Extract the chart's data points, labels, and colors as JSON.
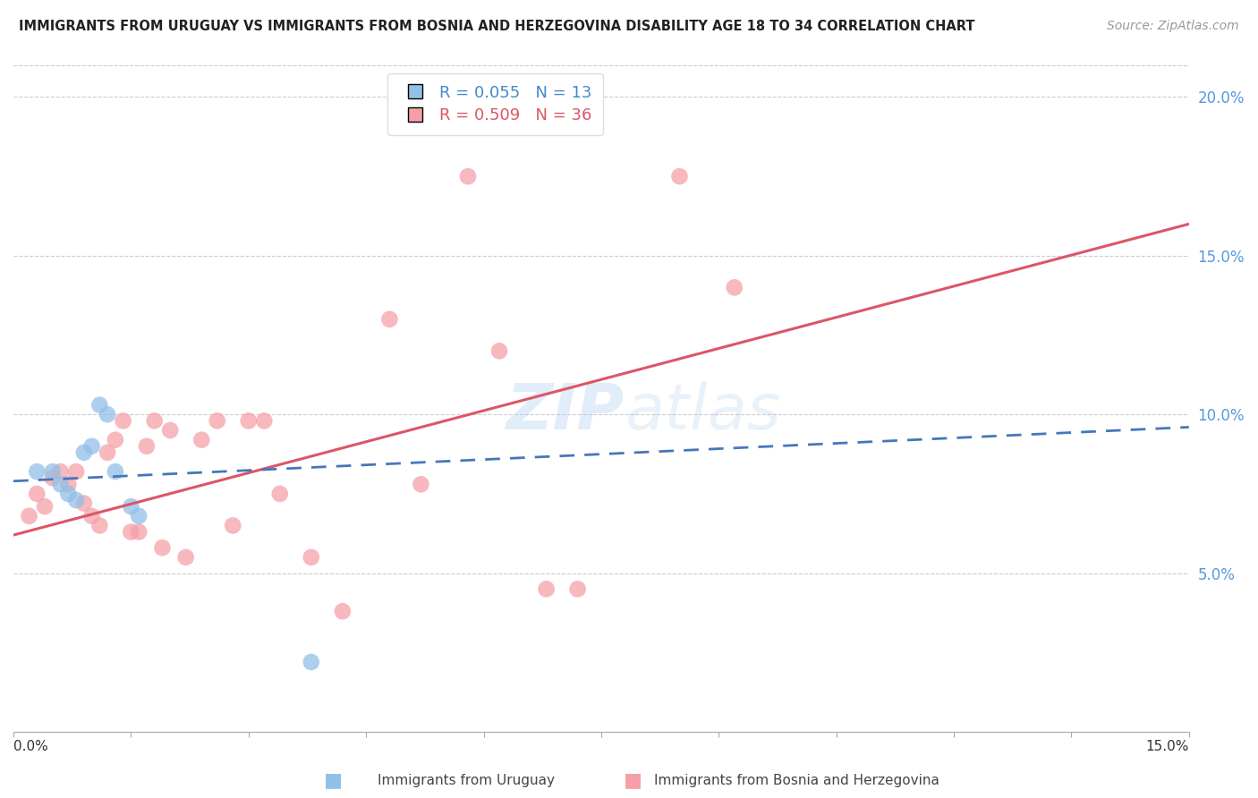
{
  "title": "IMMIGRANTS FROM URUGUAY VS IMMIGRANTS FROM BOSNIA AND HERZEGOVINA DISABILITY AGE 18 TO 34 CORRELATION CHART",
  "source": "Source: ZipAtlas.com",
  "ylabel": "Disability Age 18 to 34",
  "xlim": [
    0.0,
    0.15
  ],
  "ylim": [
    0.0,
    0.21
  ],
  "yticks_right": [
    0.05,
    0.1,
    0.15,
    0.2
  ],
  "watermark": "ZIPatlas",
  "legend_label1": "Immigrants from Uruguay",
  "legend_label2": "Immigrants from Bosnia and Herzegovina",
  "uruguay_color": "#92C0E8",
  "bosnia_color": "#F5A0A8",
  "uruguay_line_color": "#4477BB",
  "bosnia_line_color": "#DD5566",
  "uruguay_x": [
    0.003,
    0.005,
    0.006,
    0.007,
    0.008,
    0.009,
    0.01,
    0.011,
    0.012,
    0.013,
    0.015,
    0.016,
    0.038
  ],
  "uruguay_y": [
    0.082,
    0.082,
    0.078,
    0.075,
    0.073,
    0.088,
    0.09,
    0.103,
    0.1,
    0.082,
    0.071,
    0.068,
    0.022
  ],
  "bosnia_x": [
    0.002,
    0.003,
    0.004,
    0.005,
    0.006,
    0.007,
    0.008,
    0.009,
    0.01,
    0.011,
    0.012,
    0.013,
    0.014,
    0.015,
    0.016,
    0.017,
    0.018,
    0.019,
    0.02,
    0.022,
    0.024,
    0.026,
    0.028,
    0.03,
    0.032,
    0.034,
    0.038,
    0.042,
    0.048,
    0.052,
    0.058,
    0.062,
    0.068,
    0.072,
    0.085,
    0.092
  ],
  "bosnia_y": [
    0.068,
    0.075,
    0.071,
    0.08,
    0.082,
    0.078,
    0.082,
    0.072,
    0.068,
    0.065,
    0.088,
    0.092,
    0.098,
    0.063,
    0.063,
    0.09,
    0.098,
    0.058,
    0.095,
    0.055,
    0.092,
    0.098,
    0.065,
    0.098,
    0.098,
    0.075,
    0.055,
    0.038,
    0.13,
    0.078,
    0.175,
    0.12,
    0.045,
    0.045,
    0.175,
    0.14
  ],
  "uruguay_line_x0": 0.0,
  "uruguay_line_x1": 0.15,
  "uruguay_line_y0": 0.079,
  "uruguay_line_y1": 0.096,
  "bosnia_line_x0": 0.0,
  "bosnia_line_x1": 0.15,
  "bosnia_line_y0": 0.062,
  "bosnia_line_y1": 0.16
}
